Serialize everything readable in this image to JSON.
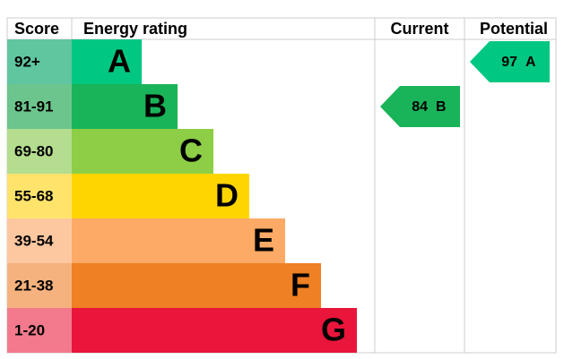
{
  "header": {
    "score": "Score",
    "rating": "Energy rating",
    "current": "Current",
    "potential": "Potential"
  },
  "bands": [
    {
      "score": "92+",
      "letter": "A"
    },
    {
      "score": "81-91",
      "letter": "B"
    },
    {
      "score": "69-80",
      "letter": "C"
    },
    {
      "score": "55-68",
      "letter": "D"
    },
    {
      "score": "39-54",
      "letter": "E"
    },
    {
      "score": "21-38",
      "letter": "F"
    },
    {
      "score": "1-20",
      "letter": "G"
    }
  ],
  "current": {
    "value": 84,
    "band": "B"
  },
  "potential": {
    "value": 97,
    "band": "A"
  }
}
